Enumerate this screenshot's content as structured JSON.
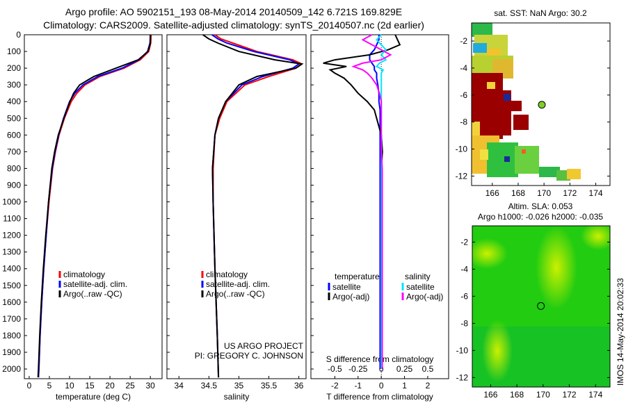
{
  "header": {
    "title1": "Argo profile: AO 5902151_193 08-May-2014 20140509_142 6.721S 169.829E",
    "title2": "Climatology: CARS2009. Satellite-adjusted climatology: synTS_20140507.nc (2d earlier)"
  },
  "credits": {
    "line1": "US ARGO PROJECT",
    "line2": "PI: GREGORY C. JOHNSON",
    "stamp": "IMOS 14-May-2014 20:02:33"
  },
  "colors": {
    "clim": "#ff0000",
    "sat": "#0000ff",
    "argo": "#000000",
    "sal_sat": "#00e5ff",
    "sal_argo": "#ff00ff"
  },
  "chart_data": [
    {
      "type": "line",
      "id": "temp",
      "xlabel": "temperature (deg C)",
      "xlim": [
        -1.2,
        32.9
      ],
      "ylim": [
        0,
        2058
      ],
      "xticks": [
        0,
        5,
        10,
        15,
        20,
        25,
        30
      ],
      "yticks": [
        0,
        100,
        200,
        300,
        400,
        500,
        600,
        700,
        800,
        900,
        1000,
        1100,
        1200,
        1300,
        1400,
        1500,
        1600,
        1700,
        1800,
        1900,
        2000
      ],
      "legend": [
        "climatology",
        "satellite-adj. clim.",
        "Argo(..raw -QC)"
      ],
      "depth": [
        0,
        50,
        100,
        150,
        200,
        250,
        300,
        350,
        400,
        500,
        600,
        700,
        800,
        1000,
        1200,
        1400,
        1600,
        1800,
        2000,
        2050
      ],
      "series": [
        {
          "name": "climatology",
          "color": "#ff0000",
          "values": [
            30.2,
            30.1,
            29.6,
            27.5,
            23.5,
            17.5,
            13.8,
            11.8,
            10.4,
            8.7,
            7.4,
            6.5,
            5.8,
            4.9,
            4.2,
            3.6,
            3.1,
            2.7,
            2.4,
            2.3
          ]
        },
        {
          "name": "satellite-adj. clim.",
          "color": "#0000ff",
          "values": [
            30.0,
            29.9,
            29.3,
            27.2,
            23.0,
            17.0,
            13.3,
            11.3,
            10.0,
            8.5,
            7.3,
            6.4,
            5.7,
            4.8,
            4.2,
            3.6,
            3.1,
            2.7,
            2.4,
            2.3
          ]
        },
        {
          "name": "Argo(..raw -QC)",
          "color": "#000000",
          "values": [
            30.0,
            30.0,
            29.4,
            27.0,
            21.5,
            16.0,
            12.5,
            11.0,
            10.1,
            8.6,
            7.2,
            6.3,
            5.6,
            4.8,
            4.1,
            3.5,
            3.0,
            2.6,
            2.3,
            2.2
          ]
        }
      ]
    },
    {
      "type": "line",
      "id": "sal",
      "xlabel": "salinity",
      "xlim": [
        33.8,
        36.12
      ],
      "xticks": [
        34,
        34.5,
        35,
        35.5,
        36
      ],
      "legend": [
        "climatology",
        "satellite-adj. clim.",
        "Argo(..raw -QC)"
      ],
      "depth": [
        0,
        25,
        50,
        100,
        150,
        175,
        200,
        250,
        300,
        400,
        500,
        600,
        800,
        1000,
        1400,
        1800,
        2050
      ],
      "series": [
        {
          "name": "climatology",
          "color": "#ff0000",
          "values": [
            34.6,
            34.7,
            34.9,
            35.3,
            35.9,
            36.05,
            35.95,
            35.5,
            35.1,
            34.8,
            34.68,
            34.6,
            34.57,
            34.57,
            34.6,
            34.64,
            34.66
          ]
        },
        {
          "name": "satellite-adj. clim.",
          "color": "#0000ff",
          "values": [
            34.55,
            34.65,
            34.8,
            35.25,
            35.85,
            36.0,
            35.9,
            35.4,
            35.05,
            34.78,
            34.66,
            34.6,
            34.56,
            34.57,
            34.6,
            34.64,
            34.66
          ]
        },
        {
          "name": "Argo(..raw -QC)",
          "color": "#000000",
          "values": [
            34.4,
            34.5,
            34.65,
            35.0,
            35.6,
            36.05,
            35.95,
            35.3,
            35.0,
            34.78,
            34.66,
            34.6,
            34.56,
            34.57,
            34.6,
            34.64,
            34.66
          ]
        }
      ]
    },
    {
      "type": "line",
      "id": "diff",
      "xlabel": "T difference from climatology",
      "x2label": "S difference from climatology",
      "xlim": [
        -3.03,
        2.9
      ],
      "xticks": [
        -2,
        -1,
        0,
        1,
        2
      ],
      "x2ticks": [
        -0.5,
        -0.25,
        0,
        0.25,
        0.5
      ],
      "legend_heads": [
        "temperature",
        "salinity"
      ],
      "legend": [
        "satellite",
        "Argo(-adj)",
        "satellite",
        "Argo(-adj)"
      ],
      "depth": [
        0,
        30,
        60,
        90,
        120,
        150,
        170,
        190,
        210,
        230,
        260,
        300,
        350,
        400,
        450,
        500,
        600,
        700,
        800,
        1000,
        1500,
        2000
      ],
      "series": [
        {
          "name": "T satellite",
          "color": "#0000ff",
          "values": [
            -0.1,
            -0.1,
            -0.2,
            -0.3,
            -0.5,
            -0.5,
            -0.4,
            -0.3,
            -0.3,
            -0.2,
            -0.2,
            -0.15,
            -0.1,
            -0.1,
            -0.05,
            -0.05,
            -0.05,
            -0.05,
            -0.05,
            -0.05,
            -0.05,
            -0.05
          ]
        },
        {
          "name": "T Argo(-adj)",
          "color": "#000000",
          "values": [
            0.6,
            0.7,
            0.8,
            0.3,
            -0.5,
            -2.0,
            -2.5,
            -1.5,
            -2.2,
            -2.0,
            -1.6,
            -1.3,
            -1.0,
            -0.6,
            -0.3,
            -0.2,
            0.0,
            0.05,
            0.0,
            0.0,
            0.0,
            0.0
          ]
        },
        {
          "name": "S satellite",
          "color": "#00e5ff",
          "values": [
            0.0,
            -0.05,
            0.0,
            0.05,
            0.0,
            0.05,
            -0.02,
            -0.05,
            0.02,
            0.0,
            0.0,
            0.0,
            0.0,
            0.0,
            0.0,
            0.0,
            0.0,
            0.0,
            0.0,
            0.0,
            0.0,
            0.0
          ]
        },
        {
          "name": "S Argo(-adj)",
          "color": "#ff00ff",
          "values": [
            -0.1,
            -0.2,
            -0.1,
            0.0,
            0.1,
            0.0,
            -0.2,
            -0.3,
            -0.2,
            -0.15,
            -0.1,
            -0.05,
            -0.02,
            0.0,
            0.0,
            0.0,
            0.0,
            0.0,
            0.01,
            0.01,
            0.01,
            0.01
          ]
        }
      ]
    },
    {
      "type": "heatmap",
      "id": "sst",
      "title": "sat. SST: NaN Argo: 30.2",
      "xlim": [
        164.4,
        175.1
      ],
      "ylim": [
        -12.7,
        -0.66
      ],
      "xticks": [
        166,
        168,
        170,
        172,
        174
      ],
      "yticks": [
        -2,
        -4,
        -6,
        -8,
        -10,
        -12
      ],
      "float": {
        "lon": 169.83,
        "lat": -6.72
      }
    },
    {
      "type": "heatmap",
      "id": "sla",
      "title": "Altim. SLA: 0.053",
      "subtitle": "Argo h1000: -0.026 h2000: -0.035",
      "xlim": [
        164.6,
        175.1
      ],
      "ylim": [
        -12.7,
        -0.8
      ],
      "xticks": [
        166,
        168,
        170,
        172,
        174
      ],
      "yticks": [
        -2,
        -4,
        -6,
        -8,
        -10,
        -12
      ],
      "float": {
        "lon": 169.83,
        "lat": -6.72
      }
    }
  ]
}
